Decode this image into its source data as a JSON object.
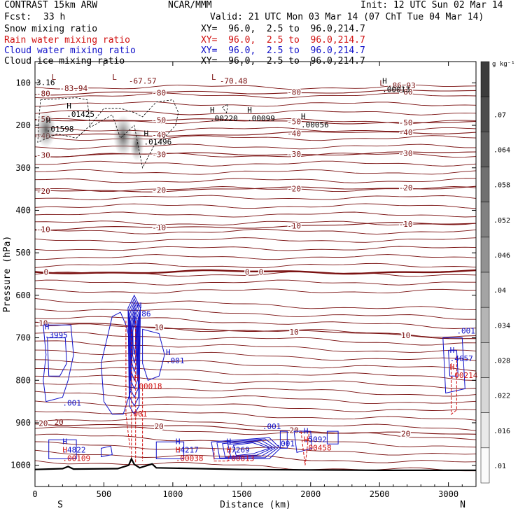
{
  "header": {
    "model": "CONTRAST 15km ARW",
    "org": "NCAR/MMM",
    "init": "Init: 12 UTC Sun 02 Mar 14",
    "fcst_label": "Fcst:",
    "fcst_value": "33 h",
    "valid": "Valid: 21 UTC Mon 03 Mar 14 (07 ChT Tue 04 Mar 14)"
  },
  "fields": [
    {
      "name": "Snow mixing ratio",
      "color": "#000000",
      "xy": "XY=  96.0,  2.5 to  96.0,214.7"
    },
    {
      "name": "Rain water mixing ratio",
      "color": "#d01010",
      "xy": "XY=  96.0,  2.5 to  96.0,214.7"
    },
    {
      "name": "Cloud water mixing ratio",
      "color": "#1010c8",
      "xy": "XY=  96.0,  2.5 to  96.0,214.7"
    },
    {
      "name": "Cloud ice mixing ratio",
      "color": "#000000",
      "xy": "XY=  96.0,  2.5 to  96.0,214.7"
    }
  ],
  "colorbar": {
    "unit": "g kg⁻¹",
    "ticks": [
      ".01",
      ".016",
      ".022",
      ".028",
      ".034",
      ".04",
      ".046",
      ".052",
      ".058",
      ".064",
      ".07"
    ]
  },
  "chart_data": {
    "type": "contour",
    "xlabel": "Distance (km)",
    "ylabel": "Pressure (hPa)",
    "xlim": [
      0,
      3200
    ],
    "ylim": [
      1050,
      50
    ],
    "xticks": [
      0,
      500,
      1000,
      1500,
      2000,
      2500,
      3000
    ],
    "yticks": [
      100,
      200,
      300,
      400,
      500,
      600,
      700,
      800,
      900,
      1000
    ],
    "x_end_labels": {
      "left": "S",
      "right": "N"
    },
    "temperature_contours": [
      {
        "label": "-80",
        "level": -80,
        "p_left": 125,
        "p_right": 120
      },
      {
        "label": "-50",
        "level": -50,
        "p_left": 185,
        "p_right": 195
      },
      {
        "label": "-40",
        "level": -40,
        "p_left": 225,
        "p_right": 215
      },
      {
        "label": "-30",
        "level": -30,
        "p_left": 270,
        "p_right": 265
      },
      {
        "label": "-20",
        "level": -20,
        "p_left": 355,
        "p_right": 345
      },
      {
        "label": "-10",
        "level": -10,
        "p_left": 445,
        "p_right": 430
      },
      {
        "label": "0",
        "level": 0,
        "p_left": 545,
        "p_right": 545
      },
      {
        "label": "10",
        "level": 10,
        "p_left": 665,
        "p_right": 700
      },
      {
        "label": "20",
        "level": 20,
        "p_left": 900,
        "p_right": 930
      }
    ],
    "temperature_labels_text": [
      "-67.57",
      "-70.48",
      "-83.94",
      "-86.93"
    ],
    "extrema": [
      {
        "kind": "H",
        "value": ".01425",
        "x": 230,
        "p": 180,
        "color": "#000000"
      },
      {
        "kind": "H",
        "value": ".01598",
        "x": 80,
        "p": 215,
        "color": "#000000"
      },
      {
        "kind": "H",
        "value": ".01496",
        "x": 790,
        "p": 245,
        "color": "#000000"
      },
      {
        "kind": "H",
        "value": ".00220",
        "x": 1270,
        "p": 190,
        "color": "#000000"
      },
      {
        "kind": "H",
        "value": ".00099",
        "x": 1540,
        "p": 190,
        "color": "#000000"
      },
      {
        "kind": "H",
        "value": ".00056",
        "x": 1930,
        "p": 205,
        "color": "#000000"
      },
      {
        "kind": "H",
        "value": ".00013",
        "x": 2520,
        "p": 122,
        "color": "#000000"
      },
      {
        "kind": "H",
        "value": ".3995",
        "x": 70,
        "p": 700,
        "color": "#1010c8"
      },
      {
        "kind": "H",
        "value": ".86",
        "x": 740,
        "p": 650,
        "color": "#1010c8"
      },
      {
        "kind": "H",
        "value": ".001",
        "x": 950,
        "p": 760,
        "color": "#1010c8"
      },
      {
        "kind": "H",
        "value": ".00018",
        "x": 720,
        "p": 820,
        "color": "#d01010"
      },
      {
        "kind": "H",
        "value": ".4822",
        "x": 200,
        "p": 970,
        "color": "#1010c8"
      },
      {
        "kind": "H",
        "value": ".00109",
        "x": 200,
        "p": 990,
        "color": "#d01010"
      },
      {
        "kind": "H",
        "value": ".4217",
        "x": 1020,
        "p": 970,
        "color": "#1010c8"
      },
      {
        "kind": "H",
        "value": ".00038",
        "x": 1020,
        "p": 990,
        "color": "#d01010"
      },
      {
        "kind": "H",
        "value": ".7269",
        "x": 1390,
        "p": 970,
        "color": "#1010c8"
      },
      {
        "kind": "H",
        "value": ".00813",
        "x": 1390,
        "p": 990,
        "color": "#d01010"
      },
      {
        "kind": "H",
        "value": ".5092",
        "x": 1950,
        "p": 945,
        "color": "#1010c8"
      },
      {
        "kind": "H",
        "value": ".00458",
        "x": 1950,
        "p": 965,
        "color": "#d01010"
      },
      {
        "kind": "H",
        "value": ".4657",
        "x": 3010,
        "p": 755,
        "color": "#1010c8"
      },
      {
        "kind": "H",
        "value": ".00214",
        "x": 3010,
        "p": 795,
        "color": "#d01010"
      }
    ],
    "misc_labels": [
      {
        "text": ".001",
        "x": 200,
        "p": 860,
        "color": "#1010c8"
      },
      {
        "text": ".001",
        "x": 1750,
        "p": 955,
        "color": "#1010c8"
      },
      {
        "text": ".001",
        "x": 1650,
        "p": 915,
        "color": "#1010c8"
      },
      {
        "text": ".001",
        "x": 680,
        "p": 885,
        "color": "#d01010"
      },
      {
        "text": ".001",
        "x": 3060,
        "p": 690,
        "color": "#1010c8"
      },
      {
        "text": "20",
        "x": 140,
        "p": 905,
        "color": "#7a1010"
      },
      {
        "text": "3.16",
        "x": 10,
        "p": 105,
        "color": "#000000"
      }
    ],
    "terrain": [
      {
        "x": 0,
        "p": 1010
      },
      {
        "x": 200,
        "p": 1008
      },
      {
        "x": 240,
        "p": 1003
      },
      {
        "x": 280,
        "p": 1009
      },
      {
        "x": 600,
        "p": 1008
      },
      {
        "x": 680,
        "p": 1000
      },
      {
        "x": 700,
        "p": 985
      },
      {
        "x": 720,
        "p": 998
      },
      {
        "x": 760,
        "p": 1006
      },
      {
        "x": 850,
        "p": 997
      },
      {
        "x": 880,
        "p": 1006
      },
      {
        "x": 1500,
        "p": 1010
      },
      {
        "x": 2500,
        "p": 1012
      },
      {
        "x": 3200,
        "p": 1012
      }
    ]
  }
}
